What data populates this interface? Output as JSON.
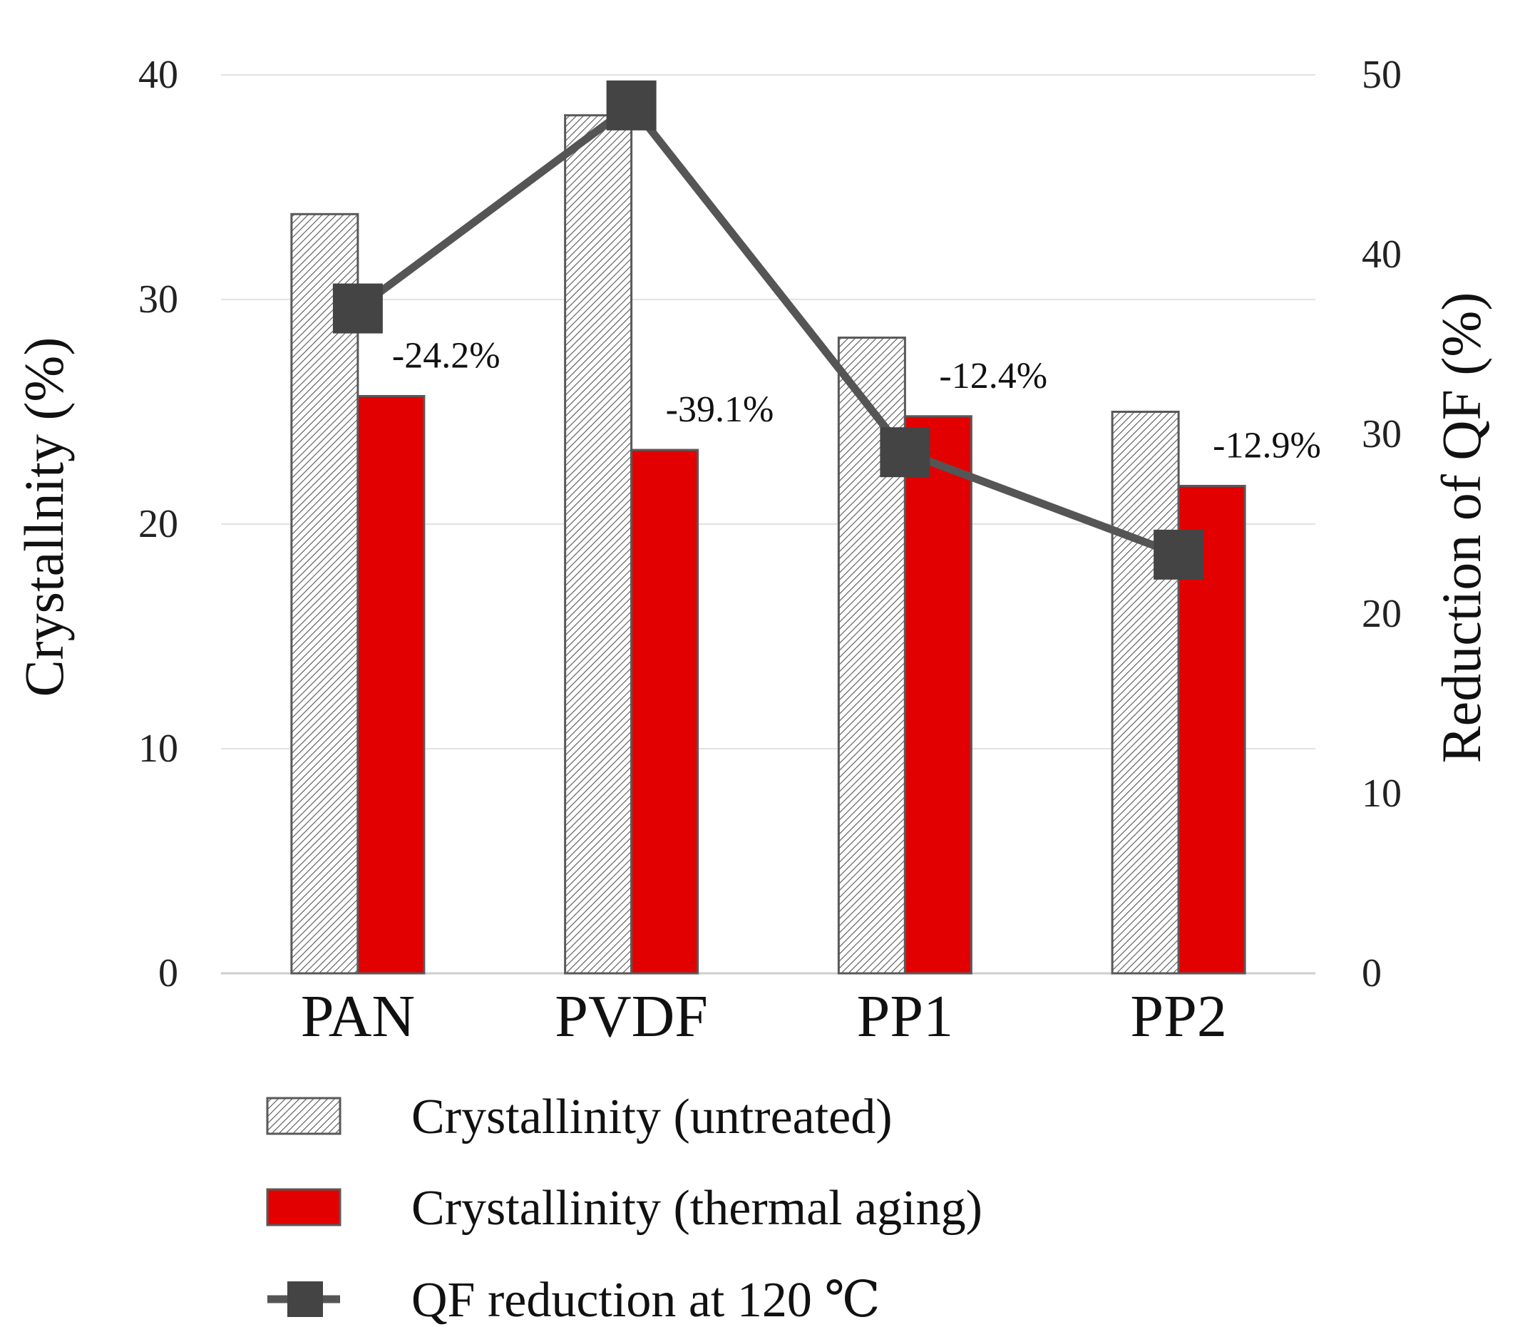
{
  "chart_data": {
    "type": "bar",
    "categories": [
      "PAN",
      "PVDF",
      "PP1",
      "PP2"
    ],
    "series": [
      {
        "name": "Crystallinity (untreated)",
        "kind": "bar",
        "axis": "left",
        "pattern": "hatch",
        "color": "#ffffff",
        "values": [
          33.8,
          38.2,
          28.3,
          25.0
        ]
      },
      {
        "name": "Crystallinity (thermal aging)",
        "kind": "bar",
        "axis": "left",
        "color": "#e30000",
        "values": [
          25.7,
          23.3,
          24.8,
          21.7
        ]
      },
      {
        "name": "QF reduction at 120 ℃",
        "kind": "line",
        "axis": "right",
        "color": "#555555",
        "marker_color": "#444444",
        "values": [
          37.0,
          48.3,
          29.0,
          23.3
        ]
      }
    ],
    "annotations": [
      "-24.2%",
      "-39.1%",
      "-12.4%",
      "-12.9%"
    ],
    "ylabel": "Crystallnity (%)",
    "y2label": "Reduction of QF (%)",
    "ylim": [
      0,
      40
    ],
    "y2lim": [
      0,
      50
    ],
    "yticks": [
      "0",
      "10",
      "20",
      "30",
      "40"
    ],
    "y2ticks": [
      "0",
      "10",
      "20",
      "30",
      "40",
      "50"
    ],
    "grid": true,
    "legend_position": "bottom-left"
  }
}
